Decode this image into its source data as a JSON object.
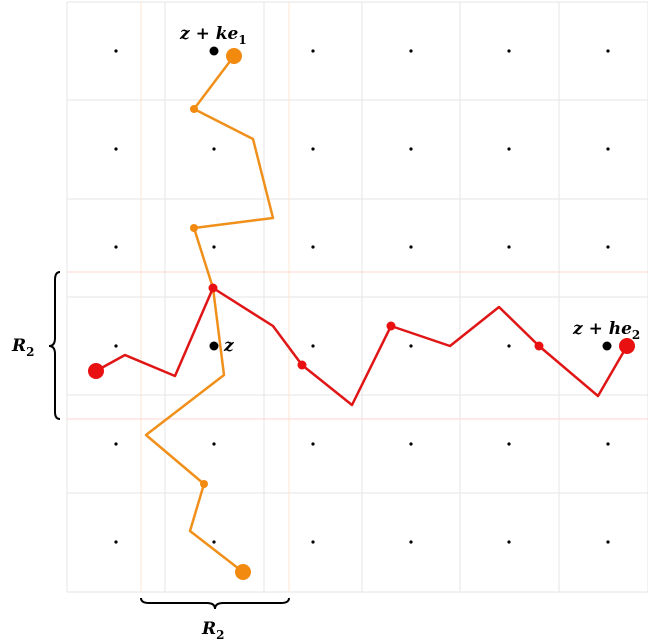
{
  "labels": {
    "top_point": {
      "base": "z + ke",
      "sub": "1"
    },
    "right_point": {
      "base": "z + he",
      "sub": "2"
    },
    "center_point": {
      "base": "z"
    },
    "left_brace": {
      "base": "R",
      "sub": "2"
    },
    "bottom_brace": {
      "base": "R",
      "sub": "2"
    }
  },
  "colors": {
    "grid": "#e6e6e6",
    "band_red": "#ffd6d6",
    "band_orange": "#ffe4cc",
    "path_orange": "#f0901a",
    "path_red": "#e01515",
    "node_orange": "#f28a10",
    "node_red": "#e81010",
    "point": "#000000"
  }
}
